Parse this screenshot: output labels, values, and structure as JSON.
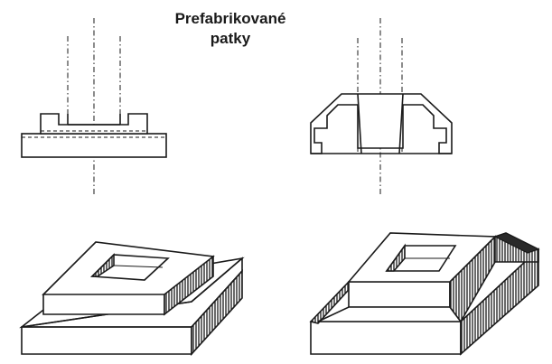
{
  "title": {
    "line1": "Prefabrikované",
    "line2": "patky"
  },
  "figures": [
    {
      "name": "section-stepped-footing"
    },
    {
      "name": "section-socket-footing"
    },
    {
      "name": "isometric-stepped-footing"
    },
    {
      "name": "isometric-socket-footing"
    }
  ]
}
